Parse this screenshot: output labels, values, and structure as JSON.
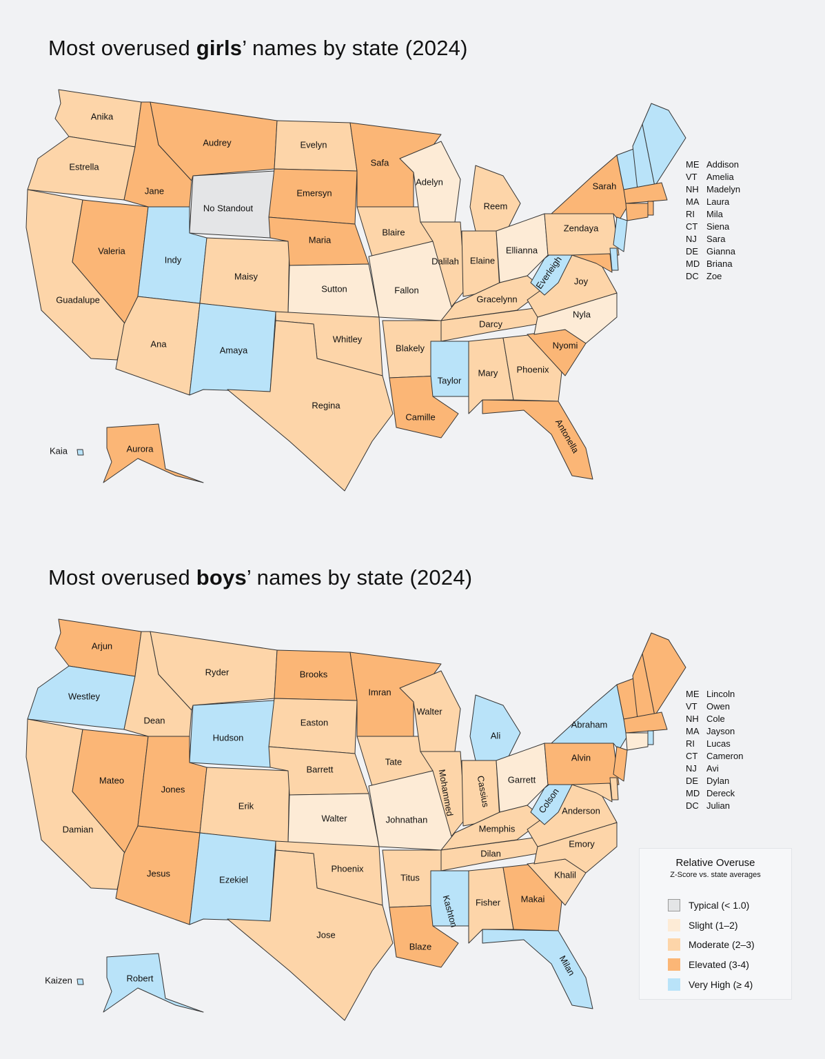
{
  "colors": {
    "typical": "#e4e5e7",
    "slight": "#fdebd6",
    "moderate": "#fdd5a9",
    "elevated": "#fbb676",
    "very_high": "#b9e3f9"
  },
  "maps": [
    {
      "title_pre": "Most overused ",
      "title_bold": "girls",
      "title_post": "’ names by state (2024)",
      "states": {
        "WA": [
          "Anika",
          "moderate"
        ],
        "OR": [
          "Estrella",
          "moderate"
        ],
        "CA": [
          "Guadalupe",
          "moderate"
        ],
        "NV": [
          "Valeria",
          "elevated"
        ],
        "ID": [
          "Jane",
          "elevated"
        ],
        "MT": [
          "Audrey",
          "elevated"
        ],
        "WY": [
          "No Standout",
          "typical"
        ],
        "UT": [
          "Indy",
          "very_high"
        ],
        "CO": [
          "Maisy",
          "moderate"
        ],
        "AZ": [
          "Ana",
          "moderate"
        ],
        "NM": [
          "Amaya",
          "very_high"
        ],
        "ND": [
          "Evelyn",
          "moderate"
        ],
        "SD": [
          "Emersyn",
          "elevated"
        ],
        "NE": [
          "Maria",
          "elevated"
        ],
        "KS": [
          "Sutton",
          "slight"
        ],
        "OK": [
          "Whitley",
          "moderate"
        ],
        "TX": [
          "Regina",
          "moderate"
        ],
        "MN": [
          "Safa",
          "elevated"
        ],
        "IA": [
          "Blaire",
          "moderate"
        ],
        "MO": [
          "Fallon",
          "slight"
        ],
        "AR": [
          "Blakely",
          "moderate"
        ],
        "LA": [
          "Camille",
          "elevated"
        ],
        "WI": [
          "Adelyn",
          "slight"
        ],
        "IL": [
          "Dalilah",
          "moderate"
        ],
        "MI": [
          "Reem",
          "moderate"
        ],
        "IN": [
          "Elaine",
          "moderate"
        ],
        "OH": [
          "Ellianna",
          "slight"
        ],
        "KY": [
          "Gracelynn",
          "moderate"
        ],
        "TN": [
          "Darcy",
          "moderate"
        ],
        "MS": [
          "Taylor",
          "very_high"
        ],
        "AL": [
          "Mary",
          "moderate"
        ],
        "GA": [
          "Phoenix",
          "moderate"
        ],
        "FL": [
          "Antonella",
          "elevated"
        ],
        "SC": [
          "Nyomi",
          "elevated"
        ],
        "NC": [
          "Nyla",
          "slight"
        ],
        "VA": [
          "Joy",
          "moderate"
        ],
        "WV": [
          "Everleigh",
          "very_high"
        ],
        "PA": [
          "Zendaya",
          "moderate"
        ],
        "NY": [
          "Sarah",
          "elevated"
        ],
        "NJ": [
          "Sara",
          "very_high"
        ],
        "DE": [
          "Gianna",
          "very_high"
        ],
        "MD": [
          "Briana",
          "elevated"
        ],
        "ME": [
          "Addison",
          "very_high"
        ],
        "VT": [
          "Amelia",
          "very_high"
        ],
        "NH": [
          "Madelyn",
          "very_high"
        ],
        "MA": [
          "Laura",
          "elevated"
        ],
        "RI": [
          "Mila",
          "elevated"
        ],
        "CT": [
          "Siena",
          "elevated"
        ],
        "DC": [
          "Zoe",
          "elevated"
        ],
        "AK": [
          "Aurora",
          "elevated"
        ],
        "HI": [
          "Kaia",
          "very_high"
        ]
      },
      "side_list": [
        [
          "ME",
          "Addison"
        ],
        [
          "VT",
          "Amelia"
        ],
        [
          "NH",
          "Madelyn"
        ],
        [
          "MA",
          "Laura"
        ],
        [
          "RI",
          "Mila"
        ],
        [
          "CT",
          "Siena"
        ],
        [
          "NJ",
          "Sara"
        ],
        [
          "DE",
          "Gianna"
        ],
        [
          "MD",
          "Briana"
        ],
        [
          "DC",
          "Zoe"
        ]
      ]
    },
    {
      "title_pre": "Most overused ",
      "title_bold": "boys",
      "title_post": "’ names by state (2024)",
      "states": {
        "WA": [
          "Arjun",
          "elevated"
        ],
        "OR": [
          "Westley",
          "very_high"
        ],
        "CA": [
          "Damian",
          "moderate"
        ],
        "NV": [
          "Mateo",
          "elevated"
        ],
        "ID": [
          "Dean",
          "moderate"
        ],
        "MT": [
          "Ryder",
          "moderate"
        ],
        "WY": [
          "Hudson",
          "very_high"
        ],
        "UT": [
          "Jones",
          "elevated"
        ],
        "CO": [
          "Erik",
          "moderate"
        ],
        "AZ": [
          "Jesus",
          "elevated"
        ],
        "NM": [
          "Ezekiel",
          "very_high"
        ],
        "ND": [
          "Brooks",
          "elevated"
        ],
        "SD": [
          "Easton",
          "moderate"
        ],
        "NE": [
          "Barrett",
          "moderate"
        ],
        "KS": [
          "Walter",
          "slight"
        ],
        "OK": [
          "Phoenix",
          "moderate"
        ],
        "TX": [
          "Jose",
          "moderate"
        ],
        "MN": [
          "Imran",
          "elevated"
        ],
        "IA": [
          "Tate",
          "moderate"
        ],
        "MO": [
          "Johnathan",
          "slight"
        ],
        "AR": [
          "Titus",
          "moderate"
        ],
        "LA": [
          "Blaze",
          "elevated"
        ],
        "WI": [
          "Walter",
          "moderate"
        ],
        "IL": [
          "Mohammed",
          "moderate"
        ],
        "MI": [
          "Ali",
          "very_high"
        ],
        "IN": [
          "Cassius",
          "moderate"
        ],
        "OH": [
          "Garrett",
          "slight"
        ],
        "KY": [
          "Memphis",
          "moderate"
        ],
        "TN": [
          "Dilan",
          "moderate"
        ],
        "MS": [
          "Kashton",
          "very_high"
        ],
        "AL": [
          "Fisher",
          "moderate"
        ],
        "GA": [
          "Makai",
          "elevated"
        ],
        "FL": [
          "Milan",
          "very_high"
        ],
        "SC": [
          "Khalil",
          "moderate"
        ],
        "NC": [
          "Emory",
          "moderate"
        ],
        "VA": [
          "Anderson",
          "moderate"
        ],
        "WV": [
          "Colson",
          "very_high"
        ],
        "PA": [
          "Alvin",
          "elevated"
        ],
        "NY": [
          "Abraham",
          "very_high"
        ],
        "NJ": [
          "Avi",
          "elevated"
        ],
        "DE": [
          "Dylan",
          "moderate"
        ],
        "MD": [
          "Dereck",
          "moderate"
        ],
        "ME": [
          "Lincoln",
          "elevated"
        ],
        "VT": [
          "Owen",
          "elevated"
        ],
        "NH": [
          "Cole",
          "elevated"
        ],
        "MA": [
          "Jayson",
          "elevated"
        ],
        "RI": [
          "Lucas",
          "very_high"
        ],
        "CT": [
          "Cameron",
          "slight"
        ],
        "DC": [
          "Julian",
          "moderate"
        ],
        "AK": [
          "Robert",
          "very_high"
        ],
        "HI": [
          "Kaizen",
          "very_high"
        ]
      },
      "side_list": [
        [
          "ME",
          "Lincoln"
        ],
        [
          "VT",
          "Owen"
        ],
        [
          "NH",
          "Cole"
        ],
        [
          "MA",
          "Jayson"
        ],
        [
          "RI",
          "Lucas"
        ],
        [
          "CT",
          "Cameron"
        ],
        [
          "NJ",
          "Avi"
        ],
        [
          "DE",
          "Dylan"
        ],
        [
          "MD",
          "Dereck"
        ],
        [
          "DC",
          "Julian"
        ]
      ]
    }
  ],
  "legend": {
    "title": "Relative Overuse",
    "subtitle": "Z-Score vs. state averages",
    "items": [
      {
        "label": "Typical (< 1.0)",
        "level": "typical"
      },
      {
        "label": "Slight (1–2)",
        "level": "slight"
      },
      {
        "label": "Moderate (2–3)",
        "level": "moderate"
      },
      {
        "label": "Elevated (3-4)",
        "level": "elevated"
      },
      {
        "label": "Very High (≥ 4)",
        "level": "very_high"
      }
    ]
  }
}
